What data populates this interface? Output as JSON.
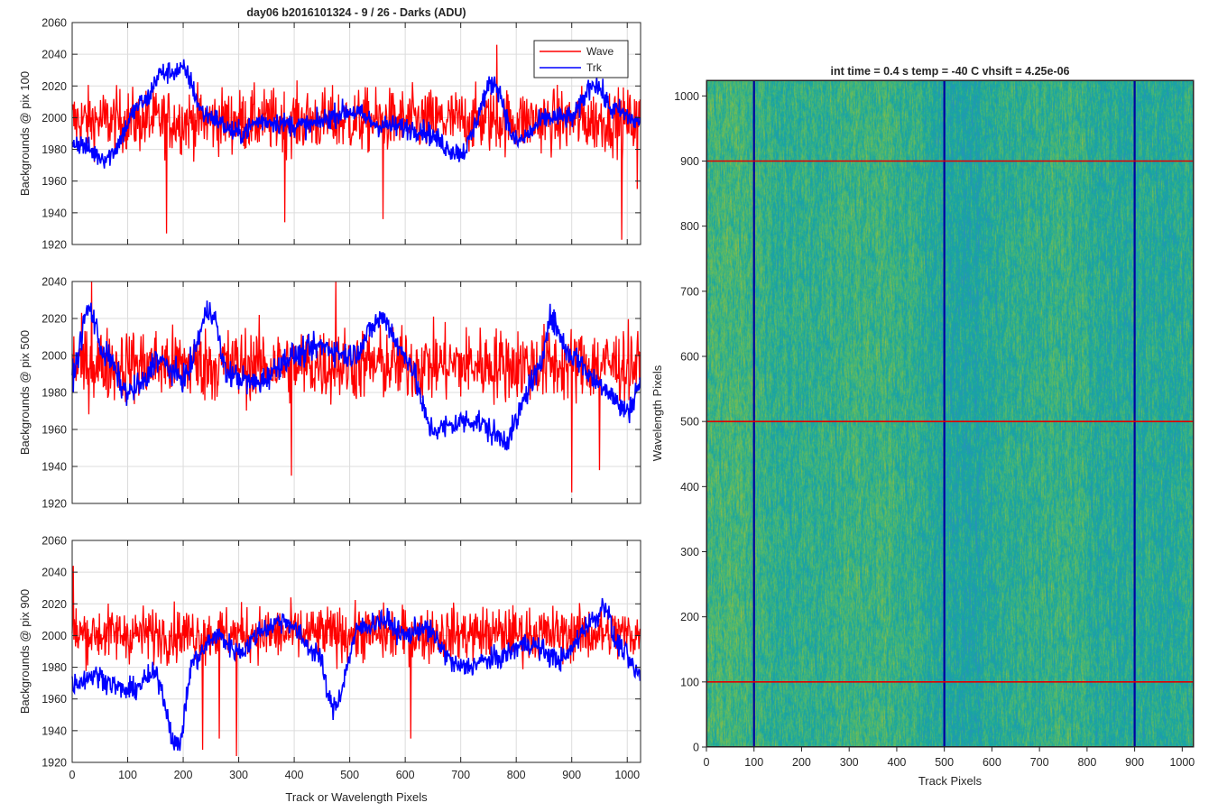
{
  "figure": {
    "background": "#ffffff"
  },
  "chart_data": [
    {
      "type": "line",
      "title": "day06 b2016101324 - 9 / 26 - Darks (ADU)",
      "xlabel": "",
      "ylabel": "Backgrounds @ pix 100",
      "xlim": [
        0,
        1024
      ],
      "ylim": [
        1920,
        2060
      ],
      "xticks": [
        0,
        100,
        200,
        300,
        400,
        500,
        600,
        700,
        800,
        900,
        1000
      ],
      "yticks": [
        1920,
        1940,
        1960,
        1980,
        2000,
        2020,
        2040,
        2060
      ],
      "show_xtick_labels": false,
      "grid": true,
      "legend": "top-right",
      "series": [
        {
          "name": "Wave",
          "color": "#ff0000",
          "mean": 1998,
          "noise": 14,
          "spikes": [
            [
              170,
              1927
            ],
            [
              383,
              1934
            ],
            [
              560,
              1936
            ],
            [
              1018,
              1955
            ],
            [
              765,
              2046
            ],
            [
              990,
              1923
            ]
          ]
        },
        {
          "name": "Trk",
          "color": "#0000ff",
          "anchors": [
            [
              0,
              1985
            ],
            [
              60,
              1975
            ],
            [
              130,
              2010
            ],
            [
              160,
              2028
            ],
            [
              200,
              2030
            ],
            [
              240,
              2002
            ],
            [
              300,
              1990
            ],
            [
              340,
              1998
            ],
            [
              420,
              1995
            ],
            [
              500,
              2004
            ],
            [
              560,
              1995
            ],
            [
              620,
              1993
            ],
            [
              700,
              1978
            ],
            [
              760,
              2022
            ],
            [
              800,
              1985
            ],
            [
              860,
              2000
            ],
            [
              900,
              2000
            ],
            [
              940,
              2022
            ],
            [
              975,
              2005
            ],
            [
              1024,
              1997
            ]
          ],
          "noise": 5
        }
      ]
    },
    {
      "type": "line",
      "title": "",
      "xlabel": "",
      "ylabel": "Backgrounds @ pix 500",
      "xlim": [
        0,
        1024
      ],
      "ylim": [
        1920,
        2040
      ],
      "xticks": [
        0,
        100,
        200,
        300,
        400,
        500,
        600,
        700,
        800,
        900,
        1000
      ],
      "yticks": [
        1920,
        1940,
        1960,
        1980,
        2000,
        2020,
        2040
      ],
      "show_xtick_labels": false,
      "grid": true,
      "series": [
        {
          "name": "Wave",
          "color": "#ff0000",
          "mean": 1995,
          "noise": 14,
          "spikes": [
            [
              395,
              1935
            ],
            [
              900,
              1926
            ],
            [
              950,
              1938
            ],
            [
              35,
              2040
            ],
            [
              475,
              2040
            ]
          ]
        },
        {
          "name": "Trk",
          "color": "#0000ff",
          "anchors": [
            [
              0,
              1990
            ],
            [
              30,
              2025
            ],
            [
              60,
              2000
            ],
            [
              100,
              1980
            ],
            [
              130,
              1985
            ],
            [
              150,
              1998
            ],
            [
              200,
              1988
            ],
            [
              250,
              2025
            ],
            [
              280,
              1990
            ],
            [
              330,
              1985
            ],
            [
              400,
              2000
            ],
            [
              450,
              2005
            ],
            [
              500,
              2000
            ],
            [
              560,
              2020
            ],
            [
              600,
              2000
            ],
            [
              650,
              1960
            ],
            [
              720,
              1965
            ],
            [
              780,
              1955
            ],
            [
              840,
              1990
            ],
            [
              860,
              2020
            ],
            [
              900,
              2000
            ],
            [
              950,
              1985
            ],
            [
              1000,
              1970
            ],
            [
              1024,
              1985
            ]
          ],
          "noise": 5
        }
      ]
    },
    {
      "type": "line",
      "title": "",
      "xlabel": "Track or Wavelength Pixels",
      "ylabel": "Backgrounds @ pix 900",
      "xlim": [
        0,
        1024
      ],
      "ylim": [
        1920,
        2060
      ],
      "xticks": [
        0,
        100,
        200,
        300,
        400,
        500,
        600,
        700,
        800,
        900,
        1000
      ],
      "yticks": [
        1920,
        1940,
        1960,
        1980,
        2000,
        2020,
        2040,
        2060
      ],
      "show_xtick_labels": true,
      "grid": true,
      "series": [
        {
          "name": "Wave",
          "color": "#ff0000",
          "mean": 2001,
          "noise": 12,
          "spikes": [
            [
              296,
              1924
            ],
            [
              235,
              1928
            ],
            [
              265,
              1935
            ],
            [
              2,
              2044
            ],
            [
              610,
              1935
            ]
          ]
        },
        {
          "name": "Trk",
          "color": "#0000ff",
          "anchors": [
            [
              0,
              1970
            ],
            [
              40,
              1975
            ],
            [
              100,
              1965
            ],
            [
              150,
              1975
            ],
            [
              190,
              1930
            ],
            [
              220,
              1985
            ],
            [
              260,
              2000
            ],
            [
              300,
              1990
            ],
            [
              350,
              2005
            ],
            [
              380,
              2010
            ],
            [
              440,
              1990
            ],
            [
              470,
              1955
            ],
            [
              520,
              2005
            ],
            [
              560,
              2010
            ],
            [
              600,
              2000
            ],
            [
              630,
              2005
            ],
            [
              700,
              1980
            ],
            [
              760,
              1985
            ],
            [
              820,
              1995
            ],
            [
              880,
              1985
            ],
            [
              940,
              2010
            ],
            [
              960,
              2020
            ],
            [
              980,
              1995
            ],
            [
              1024,
              1975
            ]
          ],
          "noise": 5
        }
      ]
    },
    {
      "type": "heatmap",
      "title": "int time = 0.4 s   temp = -40 C   vhsift = 4.25e-06",
      "xlabel": "Track Pixels",
      "ylabel": "Wavelength Pixels",
      "xlim": [
        0,
        1024
      ],
      "ylim": [
        0,
        1024
      ],
      "xticks": [
        0,
        100,
        200,
        300,
        400,
        500,
        600,
        700,
        800,
        900,
        1000
      ],
      "yticks": [
        0,
        100,
        200,
        300,
        400,
        500,
        600,
        700,
        800,
        900,
        1000
      ],
      "colormap": [
        "#2a8fbe",
        "#17a5a3",
        "#53b96a",
        "#a7bd35"
      ],
      "vertical_markers": {
        "values": [
          100,
          500,
          900
        ],
        "color": "#0000a0"
      },
      "horizontal_markers": {
        "values": [
          100,
          500,
          900
        ],
        "color": "#e00000"
      }
    }
  ]
}
